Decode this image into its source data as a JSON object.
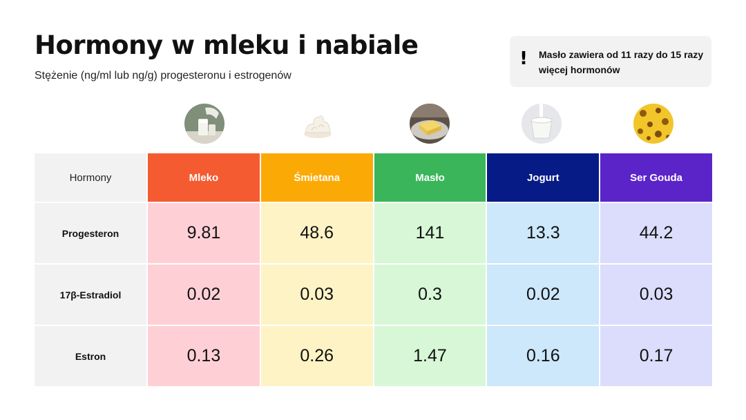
{
  "title": "Hormony w mleku i nabiale",
  "subtitle": "Stężenie (ng/ml lub ng/g) progesteronu i estrogenów",
  "note": {
    "icon": "exclamation-icon",
    "icon_glyph": "!",
    "text": "Masło zawiera od 11 razy do 15 razy więcej hormonów"
  },
  "chart_data": {
    "type": "table",
    "corner_label": "Hormony",
    "columns": [
      {
        "label": "Mleko",
        "image": "milk-image",
        "header_color": "#f45b31",
        "cell_color": "#fed0d6"
      },
      {
        "label": "Śmietana",
        "image": "whipped-cream-image",
        "header_color": "#fbaa05",
        "cell_color": "#fef3c5"
      },
      {
        "label": "Masło",
        "image": "butter-image",
        "header_color": "#3ab55a",
        "cell_color": "#d7f7d6"
      },
      {
        "label": "Jogurt",
        "image": "yogurt-image",
        "header_color": "#061b86",
        "cell_color": "#cde7fb"
      },
      {
        "label": "Ser Gouda",
        "image": "gouda-cheese-image",
        "header_color": "#5b24c9",
        "cell_color": "#dcdcfc"
      }
    ],
    "rows": [
      {
        "label": "Progesteron",
        "values": [
          "9.81",
          "48.6",
          "141",
          "13.3",
          "44.2"
        ]
      },
      {
        "label": "17β-Estradiol",
        "values": [
          "0.02",
          "0.03",
          "0.3",
          "0.02",
          "0.03"
        ]
      },
      {
        "label": "Estron",
        "values": [
          "0.13",
          "0.26",
          "1.47",
          "0.16",
          "0.17"
        ]
      }
    ]
  }
}
